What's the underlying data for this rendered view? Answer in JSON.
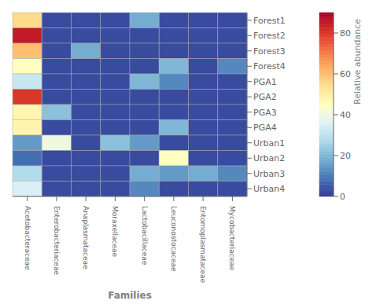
{
  "chart_data": {
    "type": "heatmap",
    "xlabel": "Families",
    "categories": [
      "Acetobacteraceae",
      "Enterobacteriaceae",
      "Anaplasmataceae",
      "Moraxellaceae",
      "Lactobacillaceae",
      "Leuconostocaceae",
      "Entomoplasmataceae",
      "Mycobacteriaceae"
    ],
    "rows": [
      "Forest1",
      "Forest2",
      "Forest3",
      "Forest4",
      "PGA1",
      "PGA2",
      "PGA3",
      "PGA4",
      "Urban1",
      "Urban2",
      "Urban3",
      "Urban4"
    ],
    "values": [
      [
        55,
        3,
        3,
        3,
        18,
        3,
        3,
        3
      ],
      [
        85,
        3,
        3,
        3,
        3,
        3,
        3,
        3
      ],
      [
        60,
        3,
        18,
        3,
        3,
        3,
        3,
        3
      ],
      [
        45,
        3,
        3,
        3,
        3,
        20,
        3,
        12
      ],
      [
        32,
        3,
        3,
        3,
        20,
        12,
        3,
        3
      ],
      [
        80,
        3,
        3,
        3,
        3,
        3,
        3,
        3
      ],
      [
        48,
        22,
        3,
        3,
        3,
        3,
        3,
        3
      ],
      [
        48,
        3,
        3,
        3,
        3,
        20,
        3,
        3
      ],
      [
        15,
        40,
        3,
        22,
        15,
        3,
        3,
        3
      ],
      [
        8,
        3,
        3,
        3,
        3,
        45,
        3,
        3
      ],
      [
        28,
        3,
        3,
        3,
        18,
        15,
        18,
        12
      ],
      [
        35,
        3,
        3,
        3,
        12,
        3,
        3,
        3
      ]
    ],
    "grid": true,
    "colorbar": {
      "label": "Relative abundance",
      "range": [
        0,
        90
      ],
      "ticks": [
        0,
        20,
        40,
        60,
        80
      ],
      "colors": [
        "#313695",
        "#4575b4",
        "#74add1",
        "#abd9e9",
        "#e0f3f8",
        "#ffffbf",
        "#fee090",
        "#fdae61",
        "#f46d43",
        "#d73027",
        "#a50026"
      ]
    }
  }
}
